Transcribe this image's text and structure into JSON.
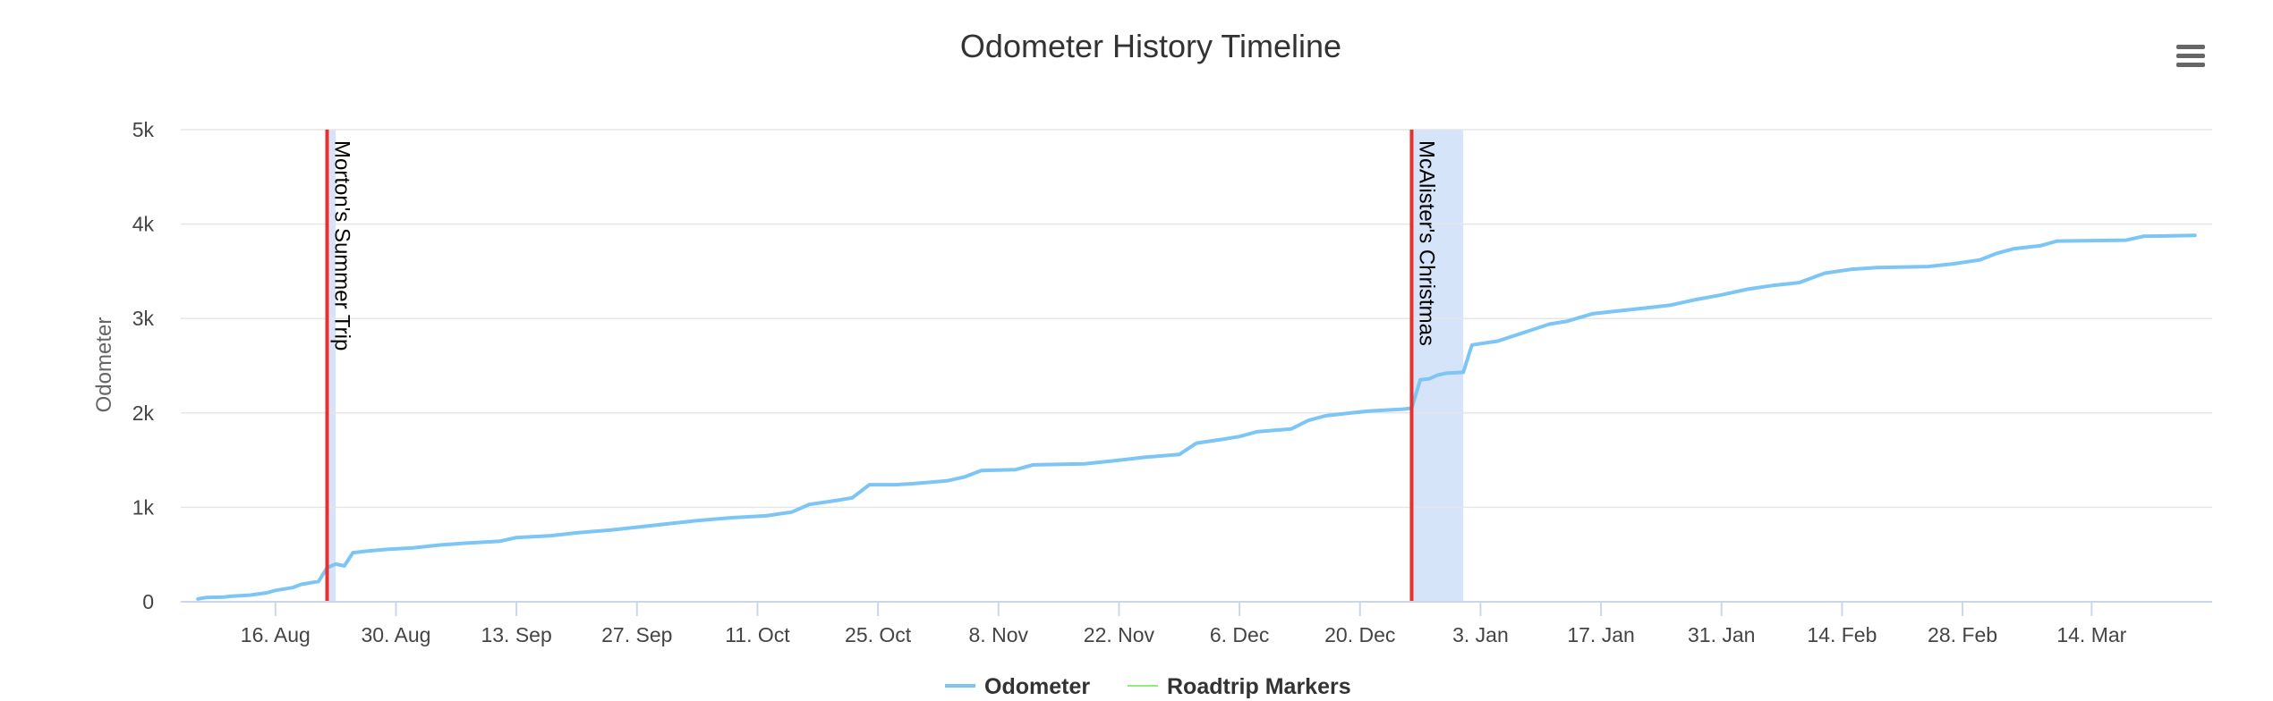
{
  "chart_data": {
    "type": "line",
    "title": "Odometer History Timeline",
    "ylabel": "Odometer",
    "xlabel": "",
    "ylim": [
      0,
      5000
    ],
    "y_ticks": [
      {
        "value": 0,
        "label": "0"
      },
      {
        "value": 1000,
        "label": "1k"
      },
      {
        "value": 2000,
        "label": "2k"
      },
      {
        "value": 3000,
        "label": "3k"
      },
      {
        "value": 4000,
        "label": "4k"
      },
      {
        "value": 5000,
        "label": "5k"
      }
    ],
    "xlim": [
      "2019-08-05",
      "2020-03-28"
    ],
    "x_ticks": [
      {
        "date": "2019-08-16",
        "label": "16. Aug"
      },
      {
        "date": "2019-08-30",
        "label": "30. Aug"
      },
      {
        "date": "2019-09-13",
        "label": "13. Sep"
      },
      {
        "date": "2019-09-27",
        "label": "27. Sep"
      },
      {
        "date": "2019-10-11",
        "label": "11. Oct"
      },
      {
        "date": "2019-10-25",
        "label": "25. Oct"
      },
      {
        "date": "2019-11-08",
        "label": "8. Nov"
      },
      {
        "date": "2019-11-22",
        "label": "22. Nov"
      },
      {
        "date": "2019-12-06",
        "label": "6. Dec"
      },
      {
        "date": "2019-12-20",
        "label": "20. Dec"
      },
      {
        "date": "2020-01-03",
        "label": "3. Jan"
      },
      {
        "date": "2020-01-17",
        "label": "17. Jan"
      },
      {
        "date": "2020-01-31",
        "label": "31. Jan"
      },
      {
        "date": "2020-02-14",
        "label": "14. Feb"
      },
      {
        "date": "2020-02-28",
        "label": "28. Feb"
      },
      {
        "date": "2020-03-14",
        "label": "14. Mar"
      }
    ],
    "grid": true,
    "legend": "bottom-center",
    "series": [
      {
        "name": "Odometer",
        "color": "#7cc5f4",
        "points": [
          [
            "2019-08-07",
            30
          ],
          [
            "2019-08-08",
            45
          ],
          [
            "2019-08-10",
            50
          ],
          [
            "2019-08-11",
            60
          ],
          [
            "2019-08-13",
            70
          ],
          [
            "2019-08-15",
            95
          ],
          [
            "2019-08-16",
            120
          ],
          [
            "2019-08-18",
            150
          ],
          [
            "2019-08-19",
            185
          ],
          [
            "2019-08-21",
            215
          ],
          [
            "2019-08-22",
            360
          ],
          [
            "2019-08-23",
            400
          ],
          [
            "2019-08-24",
            380
          ],
          [
            "2019-08-25",
            520
          ],
          [
            "2019-08-27",
            540
          ],
          [
            "2019-08-29",
            555
          ],
          [
            "2019-09-01",
            570
          ],
          [
            "2019-09-04",
            600
          ],
          [
            "2019-09-07",
            620
          ],
          [
            "2019-09-11",
            640
          ],
          [
            "2019-09-13",
            680
          ],
          [
            "2019-09-17",
            700
          ],
          [
            "2019-09-20",
            730
          ],
          [
            "2019-09-24",
            760
          ],
          [
            "2019-09-27",
            790
          ],
          [
            "2019-10-01",
            830
          ],
          [
            "2019-10-04",
            860
          ],
          [
            "2019-10-08",
            890
          ],
          [
            "2019-10-12",
            910
          ],
          [
            "2019-10-15",
            950
          ],
          [
            "2019-10-17",
            1030
          ],
          [
            "2019-10-20",
            1070
          ],
          [
            "2019-10-22",
            1100
          ],
          [
            "2019-10-24",
            1240
          ],
          [
            "2019-10-27",
            1240
          ],
          [
            "2019-10-29",
            1250
          ],
          [
            "2019-11-02",
            1280
          ],
          [
            "2019-11-04",
            1320
          ],
          [
            "2019-11-06",
            1390
          ],
          [
            "2019-11-10",
            1400
          ],
          [
            "2019-11-12",
            1450
          ],
          [
            "2019-11-18",
            1460
          ],
          [
            "2019-11-21",
            1490
          ],
          [
            "2019-11-25",
            1530
          ],
          [
            "2019-11-29",
            1560
          ],
          [
            "2019-12-01",
            1680
          ],
          [
            "2019-12-04",
            1720
          ],
          [
            "2019-12-06",
            1750
          ],
          [
            "2019-12-08",
            1800
          ],
          [
            "2019-12-12",
            1830
          ],
          [
            "2019-12-14",
            1920
          ],
          [
            "2019-12-16",
            1970
          ],
          [
            "2019-12-19",
            2000
          ],
          [
            "2019-12-21",
            2020
          ],
          [
            "2019-12-25",
            2040
          ],
          [
            "2019-12-26",
            2050
          ],
          [
            "2019-12-27",
            2350
          ],
          [
            "2019-12-28",
            2360
          ],
          [
            "2019-12-29",
            2400
          ],
          [
            "2019-12-30",
            2420
          ],
          [
            "2020-01-01",
            2430
          ],
          [
            "2020-01-02",
            2720
          ],
          [
            "2020-01-05",
            2760
          ],
          [
            "2020-01-07",
            2820
          ],
          [
            "2020-01-09",
            2880
          ],
          [
            "2020-01-11",
            2940
          ],
          [
            "2020-01-13",
            2970
          ],
          [
            "2020-01-16",
            3050
          ],
          [
            "2020-01-19",
            3080
          ],
          [
            "2020-01-22",
            3110
          ],
          [
            "2020-01-25",
            3140
          ],
          [
            "2020-01-28",
            3200
          ],
          [
            "2020-01-31",
            3250
          ],
          [
            "2020-02-03",
            3310
          ],
          [
            "2020-02-06",
            3350
          ],
          [
            "2020-02-09",
            3380
          ],
          [
            "2020-02-12",
            3480
          ],
          [
            "2020-02-15",
            3520
          ],
          [
            "2020-02-18",
            3540
          ],
          [
            "2020-02-24",
            3550
          ],
          [
            "2020-02-27",
            3580
          ],
          [
            "2020-03-01",
            3620
          ],
          [
            "2020-03-03",
            3690
          ],
          [
            "2020-03-05",
            3740
          ],
          [
            "2020-03-08",
            3770
          ],
          [
            "2020-03-10",
            3820
          ],
          [
            "2020-03-18",
            3830
          ],
          [
            "2020-03-20",
            3870
          ],
          [
            "2020-03-26",
            3880
          ]
        ]
      },
      {
        "name": "Roadtrip Markers",
        "color": "#90ed7d",
        "points": []
      }
    ],
    "markers": [
      {
        "label": "Morton's Summer Trip",
        "date": "2019-08-22",
        "band_end": "2019-08-23"
      },
      {
        "label": "McAlister's Christmas",
        "date": "2019-12-26",
        "band_end": "2020-01-01"
      }
    ],
    "colors": {
      "marker_line": "#e8302c",
      "marker_band": "#d6e4fa",
      "grid": "#e6e6e6",
      "axis": "#ccd6eb",
      "tick_text": "#444444",
      "title_text": "#333333",
      "legend_text": "#333333"
    }
  },
  "menu": {
    "icon": "hamburger-menu-icon"
  }
}
